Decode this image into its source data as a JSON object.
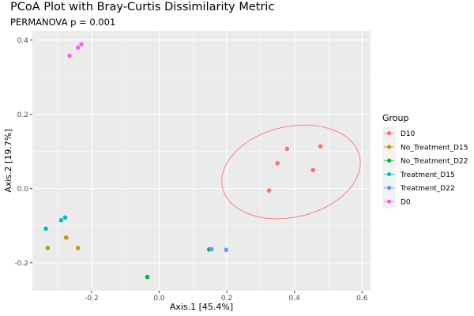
{
  "header": {
    "title": "PCoA Plot with Bray-Curtis Dissimilarity Metric",
    "subtitle": "PERMANOVA p = 0.001"
  },
  "chart_data": {
    "type": "scatter",
    "title": "PCoA Plot with Bray-Curtis Dissimilarity Metric",
    "subtitle": "PERMANOVA p = 0.001",
    "xlabel": "Axis.1  [45.4%]",
    "ylabel": "Axis.2  [19.7%]",
    "xlim": [
      -0.375,
      0.625
    ],
    "ylim": [
      -0.275,
      0.425
    ],
    "xticks": [
      -0.2,
      0.0,
      0.2,
      0.4,
      0.6
    ],
    "xtick_labels": [
      "-0.2",
      "0.0",
      "0.2",
      "0.4",
      "0.6"
    ],
    "yticks": [
      -0.2,
      0.0,
      0.2,
      0.4
    ],
    "ytick_labels": [
      "-0.2",
      "0.0",
      "0.2",
      "0.4"
    ],
    "grid": true,
    "legend_title": "Group",
    "legend_position": "right",
    "series": [
      {
        "name": "D10",
        "color": "#F8766D",
        "points": [
          [
            0.325,
            -0.005
          ],
          [
            0.35,
            0.068
          ],
          [
            0.378,
            0.107
          ],
          [
            0.455,
            0.05
          ],
          [
            0.477,
            0.114
          ]
        ]
      },
      {
        "name": "No_Treatment_D15",
        "color": "#B79F00",
        "points": [
          [
            -0.33,
            -0.16
          ],
          [
            -0.275,
            -0.132
          ],
          [
            -0.24,
            -0.16
          ]
        ]
      },
      {
        "name": "No_Treatment_D22",
        "color": "#00BA38",
        "points": [
          [
            -0.035,
            -0.238
          ],
          [
            0.148,
            -0.164
          ]
        ]
      },
      {
        "name": "Treatment_D15",
        "color": "#00BFC4",
        "points": [
          [
            -0.335,
            -0.108
          ],
          [
            -0.29,
            -0.085
          ],
          [
            -0.278,
            -0.078
          ]
        ]
      },
      {
        "name": "Treatment_D22",
        "color": "#619CFF",
        "points": [
          [
            0.155,
            -0.163
          ],
          [
            0.198,
            -0.165
          ]
        ]
      },
      {
        "name": "D0",
        "color": "#F564E3",
        "points": [
          [
            -0.265,
            0.358
          ],
          [
            -0.24,
            0.38
          ],
          [
            -0.23,
            0.389
          ]
        ]
      }
    ],
    "ellipses": [
      {
        "group": "D10",
        "color": "#F8766D",
        "cx": 0.39,
        "cy": 0.045,
        "a": 0.208,
        "b": 0.122,
        "angle_deg": 13
      }
    ],
    "colors": {
      "panel_bg": "#EBEBEB",
      "grid": "#FFFFFF",
      "legend_key_bg": "#F2F2F2"
    }
  }
}
